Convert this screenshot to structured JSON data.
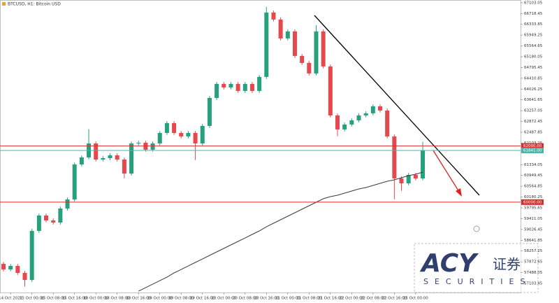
{
  "chart_data": {
    "type": "candlestick",
    "title": "BTCUSD, H1: Bitcoin USD",
    "up_color": "#26a17b",
    "down_color": "#e5484d",
    "categories": [
      null,
      "14 Oct 2021",
      null,
      null,
      "15 Oct 00:00",
      null,
      null,
      "15 Oct 08:00",
      null,
      null,
      "15 Oct 16:00",
      null,
      null,
      "18 Oct 00:00",
      null,
      null,
      "18 Oct 08:00",
      null,
      null,
      "18 Oct 16:00",
      null,
      null,
      "19 Oct 00:00",
      null,
      null,
      "19 Oct 08:00",
      null,
      null,
      "19 Oct 16:00",
      null,
      null,
      "20 Oct 00:00",
      null,
      null,
      "20 Oct 08:00",
      null,
      null,
      "20 Oct 16:00",
      null,
      null,
      "21 Oct 00:00",
      null,
      null,
      "21 Oct 08:00",
      null,
      null,
      "21 Oct 16:00",
      null,
      null,
      "22 Oct 00:00",
      null,
      null,
      "22 Oct 08:00",
      null,
      null,
      "22 Oct 16:00",
      null,
      null,
      "25 Oct 00:00",
      null
    ],
    "open": [
      57800,
      57601,
      57726,
      57477,
      57227,
      58973,
      59522,
      59347,
      59272,
      59771,
      60095,
      61342,
      61592,
      62090,
      61517,
      61567,
      61667,
      61517,
      61018,
      62090,
      62115,
      61866,
      62090,
      62464,
      62814,
      62464,
      62340,
      62464,
      62090,
      62714,
      63711,
      64210,
      64085,
      64210,
      63961,
      64210,
      63961,
      64460,
      66754,
      66505,
      65831,
      66081,
      65208,
      64958,
      64584,
      66081,
      64834,
      63088,
      62589,
      62764,
      62913,
      63088,
      63163,
      63412,
      63263,
      62340,
      60843,
      60669,
      60968,
      60843
    ],
    "high": [
      57870,
      57796,
      57796,
      57547,
      59043,
      59592,
      59592,
      59417,
      59841,
      60165,
      61412,
      61662,
      62600,
      62160,
      61637,
      61737,
      61737,
      61587,
      62160,
      62185,
      62185,
      62160,
      62534,
      62884,
      62884,
      62534,
      62534,
      62534,
      62784,
      63781,
      64280,
      64280,
      64280,
      64280,
      64280,
      64280,
      64530,
      66950,
      66824,
      66575,
      66151,
      66151,
      65278,
      65028,
      66300,
      66151,
      64904,
      63158,
      62834,
      62983,
      63158,
      63233,
      63482,
      63482,
      63333,
      62410,
      60913,
      61038,
      61038,
      62150
    ],
    "low": [
      57531,
      57531,
      57407,
      56990,
      57157,
      58903,
      59277,
      59202,
      59202,
      59701,
      60025,
      61272,
      61522,
      61447,
      61447,
      61497,
      61447,
      60850,
      60948,
      62020,
      61796,
      61796,
      62020,
      62394,
      62394,
      62270,
      62270,
      61500,
      62020,
      62644,
      63641,
      64015,
      64015,
      63891,
      63891,
      63891,
      63891,
      64390,
      66435,
      65761,
      65761,
      65138,
      64888,
      64514,
      64514,
      64764,
      63018,
      62350,
      62519,
      62694,
      62843,
      63018,
      63093,
      63193,
      62270,
      60100,
      60400,
      60599,
      60773,
      60773
    ],
    "close": [
      57601,
      57726,
      57477,
      57227,
      58973,
      59522,
      59347,
      59272,
      59771,
      60095,
      61342,
      61592,
      62090,
      61517,
      61567,
      61667,
      61517,
      61018,
      62090,
      62115,
      61866,
      62090,
      62464,
      62814,
      62464,
      62340,
      62464,
      62090,
      62714,
      63711,
      64210,
      64085,
      64210,
      63961,
      64210,
      63961,
      64460,
      66754,
      66505,
      65831,
      66081,
      65208,
      64958,
      64584,
      66081,
      64834,
      63088,
      62589,
      62764,
      62913,
      63088,
      63163,
      63412,
      63263,
      62340,
      60843,
      60669,
      60968,
      60843,
      61841
    ],
    "ma": {
      "color": "#3a3a3a",
      "values": [
        null,
        null,
        null,
        null,
        null,
        null,
        null,
        null,
        null,
        null,
        null,
        null,
        null,
        null,
        null,
        null,
        null,
        null,
        null,
        56828,
        56953,
        57077,
        57202,
        57327,
        57477,
        57601,
        57726,
        57851,
        57975,
        58100,
        58225,
        58350,
        58474,
        58599,
        58723,
        58848,
        58973,
        59122,
        59247,
        59372,
        59496,
        59621,
        59746,
        59871,
        59995,
        60120,
        60195,
        60245,
        60320,
        60394,
        60469,
        60519,
        60594,
        60669,
        60744,
        60793,
        60868,
        60943,
        60993,
        61068
      ]
    },
    "hlines": [
      {
        "value": 62000,
        "label": "62000.00",
        "color": "#d32f2f"
      },
      {
        "value": 61841,
        "label": "61841.00",
        "color": "#4fb3a9"
      },
      {
        "value": 60000,
        "label": "60000.00",
        "color": "#d32f2f"
      }
    ],
    "ylim": [
      56780,
      67200
    ],
    "yticks": [
      67103.05,
      66718.45,
      66333.85,
      65949.25,
      65564.65,
      65180.05,
      64795.45,
      64410.85,
      64026.25,
      63641.65,
      63257.05,
      62872.45,
      62487.85,
      62103.25,
      61334.05,
      60949.45,
      60564.85,
      60180.25,
      59795.65,
      59411.05,
      59026.45,
      58641.85,
      58257.25,
      57872.65,
      57488.05,
      57103.45
    ],
    "watermark": {
      "brand": "ACY",
      "cn": "证券",
      "sub": "SECURITIES"
    }
  }
}
